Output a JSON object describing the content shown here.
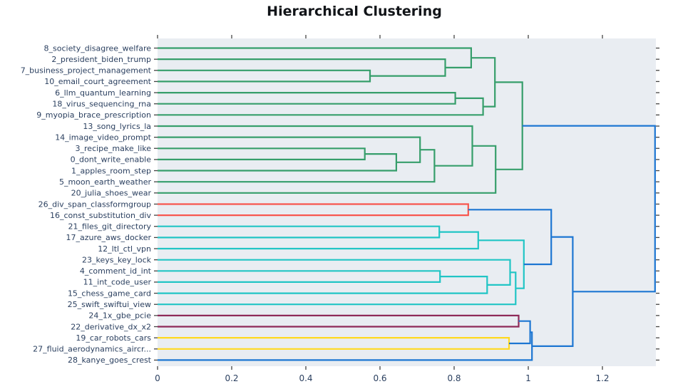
{
  "title": "Hierarchical Clustering",
  "chart_data": {
    "type": "dendrogram",
    "orientation": "left-to-right (root at right)",
    "title": "Hierarchical Clustering",
    "grid": false,
    "plot_bg": "#e9edf2",
    "label_color": "#2a3f5f",
    "tick_mark_color": "#444444",
    "line_width": 2.2,
    "colors": {
      "green": "#369e6b",
      "red": "#f8564e",
      "cyan": "#21c5c5",
      "purple": "#8e2a58",
      "yellow": "#ffd91f",
      "blue": "#1d76d2"
    },
    "xlim": [
      0,
      1.3442
    ],
    "x_ticks": [
      {
        "v": 0.0,
        "label": "0"
      },
      {
        "v": 0.2,
        "label": "0.2"
      },
      {
        "v": 0.4,
        "label": "0.4"
      },
      {
        "v": 0.6,
        "label": "0.6"
      },
      {
        "v": 0.8,
        "label": "0.8"
      },
      {
        "v": 1.0,
        "label": "1"
      },
      {
        "v": 1.2,
        "label": "1.2"
      }
    ],
    "leaves": [
      "8_society_disagree_welfare",
      "2_president_biden_trump",
      "7_business_project_management",
      "10_email_court_agreement",
      "6_llm_quantum_learning",
      "18_virus_sequencing_rna",
      "9_myopia_brace_prescription",
      "13_song_lyrics_la",
      "14_image_video_prompt",
      "3_recipe_make_like",
      "0_dont_write_enable",
      "1_apples_room_step",
      "5_moon_earth_weather",
      "20_julia_shoes_wear",
      "26_div_span_classformgroup",
      "16_const_substitution_div",
      "21_files_git_directory",
      "17_azure_aws_docker",
      "12_ltl_ctl_vpn",
      "23_keys_key_lock",
      "4_comment_id_int",
      "11_int_code_user",
      "15_chess_game_card",
      "25_swift_swiftui_view",
      "24_1x_gbe_pcie",
      "22_derivative_dx_x2",
      "19_car_robots_cars",
      "27_fluid_aerodynamics_aircr...",
      "28_kanye_goes_crest"
    ],
    "merges": [
      {
        "id": "M0",
        "a": "L2",
        "b": "L3",
        "h": 0.573,
        "color": "green"
      },
      {
        "id": "M1",
        "a": "L1",
        "b": "M0",
        "h": 0.776,
        "color": "green"
      },
      {
        "id": "M2",
        "a": "L0",
        "b": "M1",
        "h": 0.846,
        "color": "green"
      },
      {
        "id": "M3",
        "a": "L4",
        "b": "L5",
        "h": 0.803,
        "color": "green"
      },
      {
        "id": "M4",
        "a": "M3",
        "b": "L6",
        "h": 0.878,
        "color": "green"
      },
      {
        "id": "M5",
        "a": "M2",
        "b": "M4",
        "h": 0.91,
        "color": "green"
      },
      {
        "id": "M6",
        "a": "L9",
        "b": "L10",
        "h": 0.559,
        "color": "green"
      },
      {
        "id": "M7",
        "a": "M6",
        "b": "L11",
        "h": 0.644,
        "color": "green"
      },
      {
        "id": "M8",
        "a": "L8",
        "b": "M7",
        "h": 0.708,
        "color": "green"
      },
      {
        "id": "M9",
        "a": "M8",
        "b": "L12",
        "h": 0.747,
        "color": "green"
      },
      {
        "id": "M10",
        "a": "L7",
        "b": "M9",
        "h": 0.849,
        "color": "green"
      },
      {
        "id": "M11",
        "a": "M10",
        "b": "L13",
        "h": 0.912,
        "color": "green"
      },
      {
        "id": "M12",
        "a": "M5",
        "b": "M11",
        "h": 0.984,
        "color": "green"
      },
      {
        "id": "M13",
        "a": "L14",
        "b": "L15",
        "h": 0.838,
        "color": "red"
      },
      {
        "id": "M14",
        "a": "L16",
        "b": "L17",
        "h": 0.76,
        "color": "cyan"
      },
      {
        "id": "M15",
        "a": "M14",
        "b": "L18",
        "h": 0.865,
        "color": "cyan"
      },
      {
        "id": "M16",
        "a": "L20",
        "b": "L21",
        "h": 0.762,
        "color": "cyan"
      },
      {
        "id": "M17",
        "a": "M16",
        "b": "L22",
        "h": 0.889,
        "color": "cyan"
      },
      {
        "id": "M18",
        "a": "L19",
        "b": "M17",
        "h": 0.951,
        "color": "cyan"
      },
      {
        "id": "M19",
        "a": "M18",
        "b": "L23",
        "h": 0.966,
        "color": "cyan"
      },
      {
        "id": "M20",
        "a": "M15",
        "b": "M19",
        "h": 0.988,
        "color": "cyan"
      },
      {
        "id": "M21",
        "a": "L24",
        "b": "L25",
        "h": 0.974,
        "color": "purple"
      },
      {
        "id": "M22",
        "a": "L26",
        "b": "L27",
        "h": 0.948,
        "color": "yellow"
      },
      {
        "id": "M23",
        "a": "M13",
        "b": "M20",
        "h": 1.062,
        "color": "blue"
      },
      {
        "id": "M24",
        "a": "M21",
        "b": "M22",
        "h": 1.005,
        "color": "blue"
      },
      {
        "id": "M25",
        "a": "M24",
        "b": "L28",
        "h": 1.01,
        "color": "blue"
      },
      {
        "id": "M26",
        "a": "M23",
        "b": "M25",
        "h": 1.12,
        "color": "blue"
      },
      {
        "id": "M27",
        "a": "M12",
        "b": "M26",
        "h": 1.342,
        "color": "blue"
      }
    ]
  }
}
